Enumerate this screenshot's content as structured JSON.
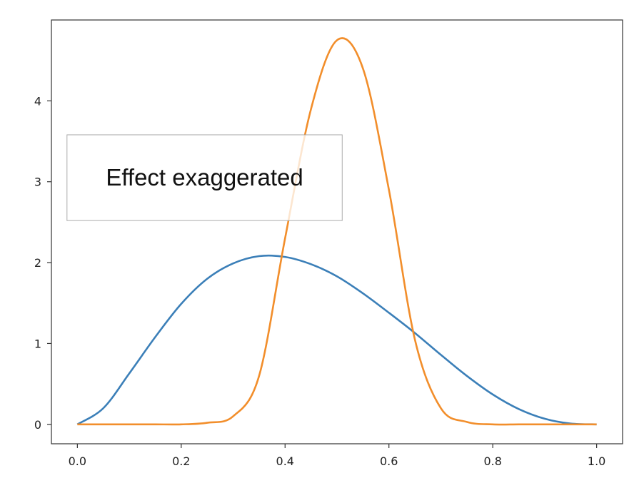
{
  "chart_data": {
    "type": "line",
    "title": "",
    "xlabel": "",
    "ylabel": "",
    "xlim": [
      -0.05,
      1.05
    ],
    "ylim": [
      -0.24,
      5.0
    ],
    "grid": false,
    "x_ticks": [
      "0.0",
      "0.2",
      "0.4",
      "0.6",
      "0.8",
      "1.0"
    ],
    "y_ticks": [
      "0",
      "1",
      "2",
      "3",
      "4"
    ],
    "annotation": {
      "text": "Effect exaggerated",
      "x_range": [
        -0.02,
        0.51
      ],
      "y_range": [
        2.52,
        3.58
      ]
    },
    "series": [
      {
        "color": "#3b7fb8",
        "x": [
          0.0,
          0.05,
          0.1,
          0.15,
          0.2,
          0.25,
          0.3,
          0.35,
          0.4,
          0.45,
          0.5,
          0.55,
          0.6,
          0.65,
          0.7,
          0.75,
          0.8,
          0.85,
          0.9,
          0.95,
          1.0
        ],
        "y": [
          0.0,
          0.2,
          0.63,
          1.08,
          1.49,
          1.8,
          1.99,
          2.08,
          2.07,
          1.98,
          1.83,
          1.62,
          1.38,
          1.13,
          0.86,
          0.6,
          0.37,
          0.19,
          0.07,
          0.01,
          0.0
        ]
      },
      {
        "color": "#f28e2b",
        "x": [
          0.0,
          0.05,
          0.1,
          0.15,
          0.2,
          0.25,
          0.3,
          0.35,
          0.4,
          0.45,
          0.5,
          0.55,
          0.6,
          0.65,
          0.7,
          0.75,
          0.8,
          0.85,
          0.9,
          0.95,
          1.0
        ],
        "y": [
          0.0,
          0.0,
          0.0,
          0.0,
          0.0,
          0.02,
          0.1,
          0.6,
          2.3,
          3.9,
          4.75,
          4.4,
          2.9,
          1.05,
          0.2,
          0.03,
          0.0,
          0.0,
          0.0,
          0.0,
          0.0
        ]
      }
    ]
  }
}
